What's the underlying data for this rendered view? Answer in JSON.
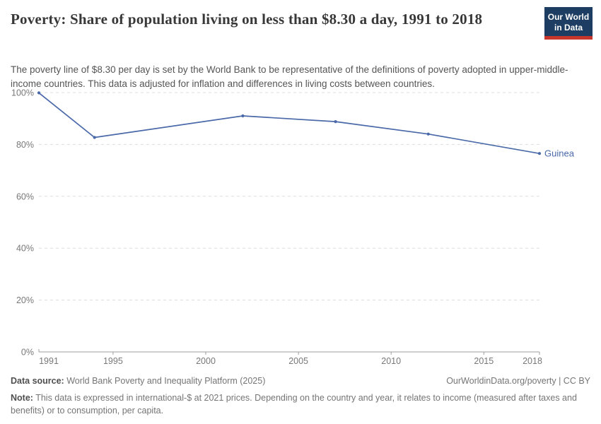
{
  "header": {
    "title": "Poverty: Share of population living on less than $8.30 a day, 1991 to 2018",
    "subtitle": "The poverty line of $8.30 per day is set by the World Bank to be representative of the definitions of poverty adopted in upper-middle-income countries. This data is adjusted for inflation and differences in living costs between countries.",
    "logo": {
      "line1": "Our World",
      "line2": "in Data",
      "bg_color": "#1d3d63",
      "bar_color": "#c7362c",
      "text_color": "#ffffff"
    }
  },
  "chart_data": {
    "type": "line",
    "title": "Poverty: Share of population living on less than $8.30 a day, 1991 to 2018",
    "entity": "Guinea",
    "x": [
      1991,
      1994,
      2002,
      2007,
      2012,
      2018
    ],
    "values": [
      99.9,
      82.7,
      91,
      88.8,
      84,
      76.5
    ],
    "xlabel": "",
    "ylabel": "",
    "xlim": [
      1991,
      2018
    ],
    "ylim": [
      0,
      100
    ],
    "x_ticks": [
      1991,
      1995,
      2000,
      2005,
      2010,
      2015,
      2018
    ],
    "y_ticks": [
      0,
      20,
      40,
      60,
      80,
      100
    ],
    "y_tick_suffix": "%",
    "grid": "horizontal dashed",
    "legend_position": "end-of-line label",
    "line_color": "#4a69a8",
    "label_color": "#4a69a8",
    "axis_color": "#9e9e9e",
    "grid_color": "#dddddd",
    "tick_label_color": "#787878"
  },
  "footer": {
    "datasource_label": "Data source:",
    "datasource_text": " World Bank Poverty and Inequality Platform (2025)",
    "link_text": "OurWorldinData.org/poverty",
    "separator": " | ",
    "license_text": "CC BY",
    "note_label": "Note:",
    "note_text": " This data is expressed in international-$ at 2021 prices. Depending on the country and year, it relates to income (measured after taxes and benefits) or to consumption, per capita."
  }
}
